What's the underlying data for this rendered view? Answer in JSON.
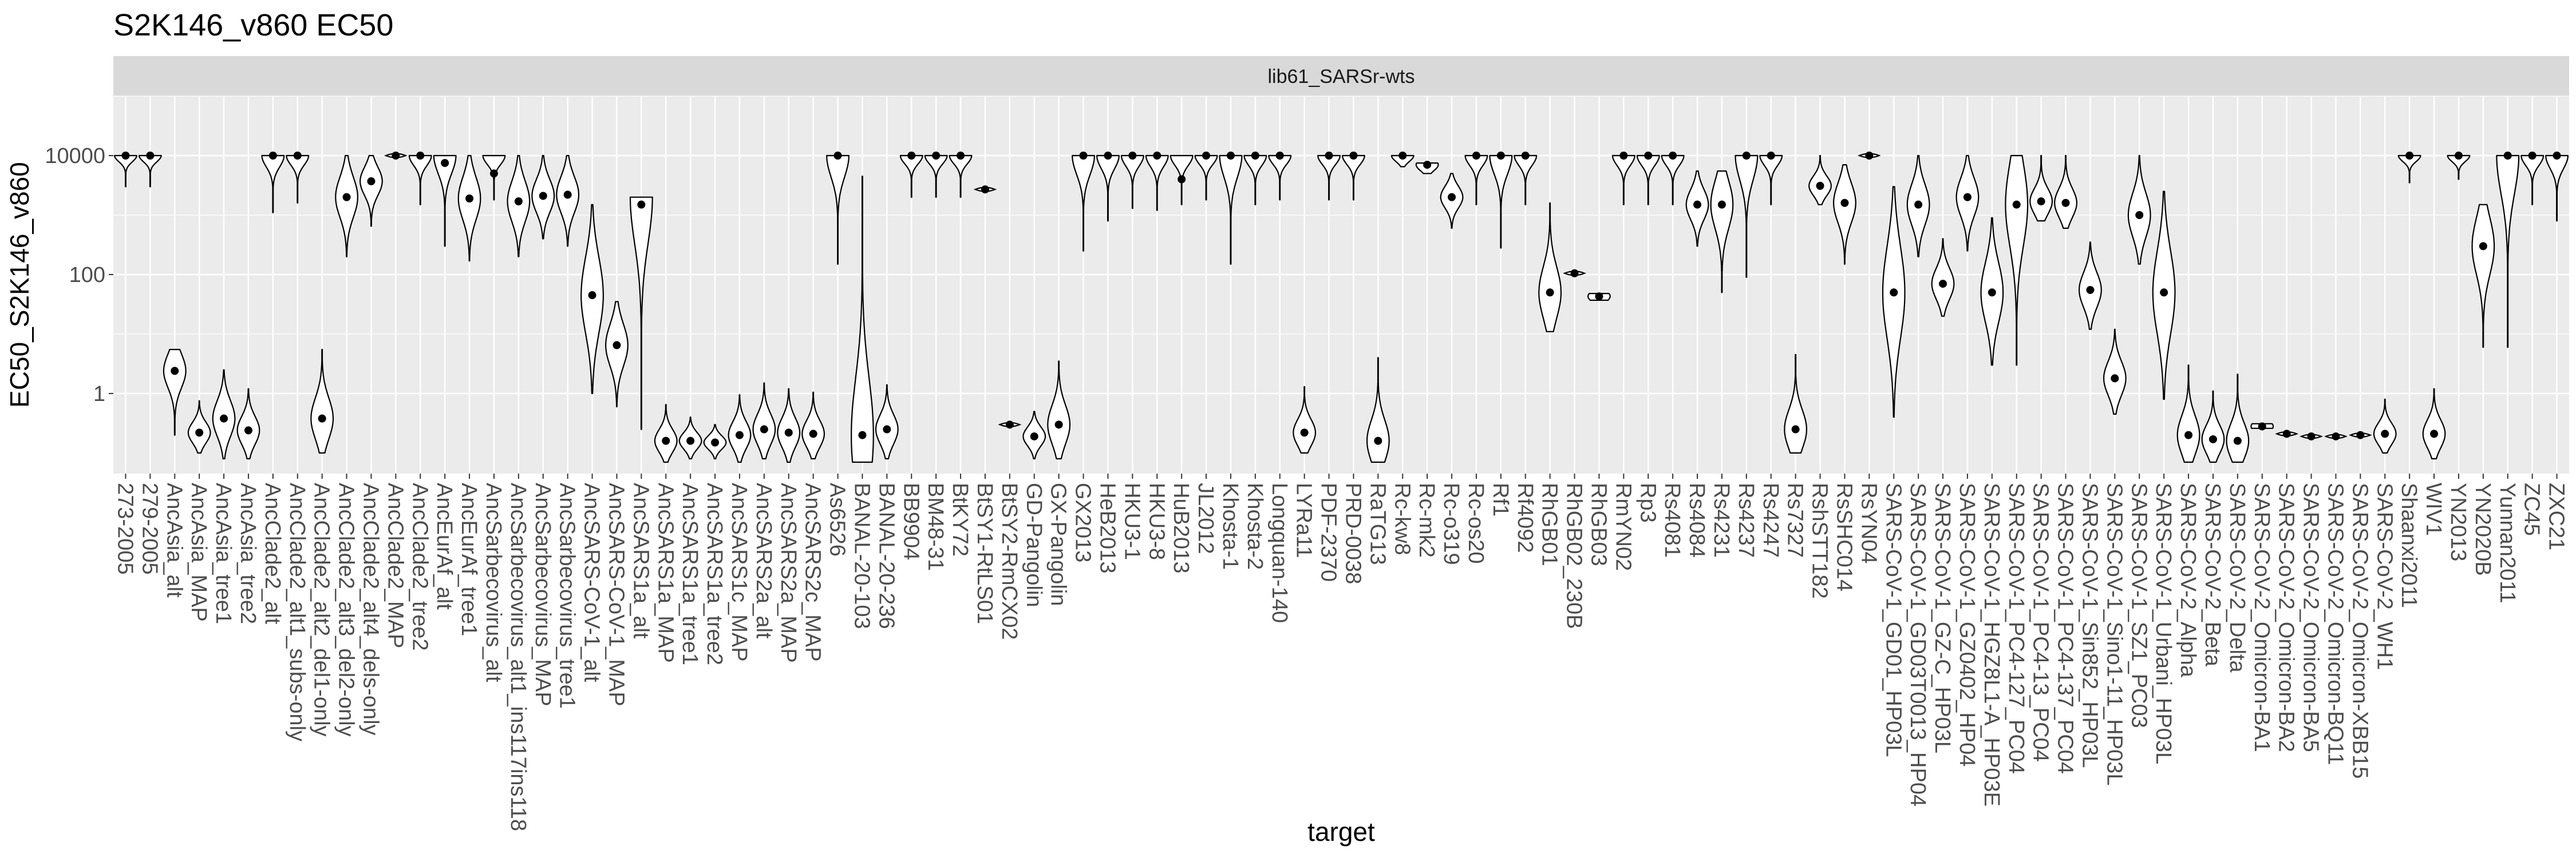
{
  "chart_data": {
    "type": "violin",
    "title": "S2K146_v860 EC50",
    "facet_label": "lib61_SARSr-wts",
    "xlabel": "target",
    "ylabel": "EC50_S2K146_v860",
    "y_scale": "log10",
    "ylim": [
      0.045,
      100000
    ],
    "y_ticks": [
      1,
      100,
      10000
    ],
    "y_tick_labels": [
      "1",
      "100",
      "10000"
    ],
    "grid": true,
    "colors": {
      "panel_background": "#ebebeb",
      "strip_background": "#d9d9d9",
      "grid_major": "#ffffff",
      "violin_fill": "#ffffff",
      "violin_outline": "#000000",
      "median_point": "#000000"
    },
    "categories": [
      "273-2005",
      "279-2005",
      "AncAsia_alt",
      "AncAsia_MAP",
      "AncAsia_tree1",
      "AncAsia_tree2",
      "AncClade2_alt",
      "AncClade2_alt1_subs-only",
      "AncClade2_alt2_del1-only",
      "AncClade2_alt3_del2-only",
      "AncClade2_alt4_dels-only",
      "AncClade2_MAP",
      "AncClade2_tree2",
      "AncEurAf_alt",
      "AncEurAf_tree1",
      "AncSarbecovirus_alt",
      "AncSarbecovirus_alt1_ins117ins118",
      "AncSarbecovirus_MAP",
      "AncSarbecovirus_tree1",
      "AncSARS-CoV-1_alt",
      "AncSARS-CoV-1_MAP",
      "AncSARS1a_alt",
      "AncSARS1a_MAP",
      "AncSARS1a_tree1",
      "AncSARS1a_tree2",
      "AncSARS1c_MAP",
      "AncSARS2a_alt",
      "AncSARS2a_MAP",
      "AncSARS2c_MAP",
      "As6526",
      "BANAL-20-103",
      "BANAL-20-236",
      "BB9904",
      "BM48-31",
      "BtKY72",
      "BtSY1-RtLS01",
      "BtSY2-RmCX02",
      "GD-Pangolin",
      "GX-Pangolin",
      "GX2013",
      "HeB2013",
      "HKU3-1",
      "HKU3-8",
      "HuB2013",
      "JL2012",
      "Khosta-1",
      "Khosta-2",
      "Longquan-140",
      "LYRa11",
      "PDF-2370",
      "PRD-0038",
      "RaTG13",
      "Rc-kw8",
      "Rc-mk2",
      "Rc-o319",
      "Rc-os20",
      "Rf1",
      "Rf4092",
      "RhGB01",
      "RhGB02_230B",
      "RhGB03",
      "RmYN02",
      "Rp3",
      "Rs4081",
      "Rs4084",
      "Rs4231",
      "Rs4237",
      "Rs4247",
      "Rs7327",
      "RshSTT182",
      "RsSHC014",
      "RsYN04",
      "SARS-CoV-1_GD01_HP03L",
      "SARS-CoV-1_GD03T0013_HP04",
      "SARS-CoV-1_GZ-C_HP03L",
      "SARS-CoV-1_GZ0402_HP04",
      "SARS-CoV-1_HGZ8L1-A_HP03E",
      "SARS-CoV-1_PC4-127_PC04",
      "SARS-CoV-1_PC4-13_PC04",
      "SARS-CoV-1_PC4-137_PC04",
      "SARS-CoV-1_Sin852_HP03L",
      "SARS-CoV-1_Sino1-11_HP03L",
      "SARS-CoV-1_SZ1_PC03",
      "SARS-CoV-1_Urbani_HP03L",
      "SARS-CoV-2_Alpha",
      "SARS-CoV-2_Beta",
      "SARS-CoV-2_Delta",
      "SARS-CoV-2_Omicron-BA1",
      "SARS-CoV-2_Omicron-BA2",
      "SARS-CoV-2_Omicron-BA5",
      "SARS-CoV-2_Omicron-BQ11",
      "SARS-CoV-2_Omicron-XBB15",
      "SARS-CoV-2_WH1",
      "Shaanxi2011",
      "WIV1",
      "YN2013",
      "YN2020B",
      "Yunnan2011",
      "ZC45",
      "ZXC21"
    ],
    "series": [
      {
        "values": [
          {
            "median": 10000,
            "min": 3000,
            "max": 10000,
            "peak": 10000
          },
          {
            "median": 10000,
            "min": 3000,
            "max": 10000,
            "peak": 10000
          },
          {
            "median": 2.4,
            "min": 0.2,
            "max": 5.5,
            "peak": 2.4
          },
          {
            "median": 0.22,
            "min": 0.1,
            "max": 0.75,
            "peak": 0.22
          },
          {
            "median": 0.38,
            "min": 0.08,
            "max": 2.5,
            "peak": 0.38
          },
          {
            "median": 0.24,
            "min": 0.08,
            "max": 1.2,
            "peak": 0.24
          },
          {
            "median": 10000,
            "min": 1100,
            "max": 10000,
            "peak": 10000
          },
          {
            "median": 10000,
            "min": 1600,
            "max": 10000,
            "peak": 10000
          },
          {
            "median": 0.38,
            "min": 0.1,
            "max": 5.5,
            "peak": 0.38
          },
          {
            "median": 2000,
            "min": 200,
            "max": 10000,
            "peak": 2000
          },
          {
            "median": 3700,
            "min": 650,
            "max": 10000,
            "peak": 3700
          },
          {
            "median": 10000,
            "min": 10000,
            "max": 10000,
            "peak": 10000
          },
          {
            "median": 10000,
            "min": 1500,
            "max": 10000,
            "peak": 10000
          },
          {
            "median": 7500,
            "min": 300,
            "max": 10000,
            "peak": 10000
          },
          {
            "median": 1900,
            "min": 170,
            "max": 10000,
            "peak": 1900
          },
          {
            "median": 5000,
            "min": 1800,
            "max": 10000,
            "peak": 10000
          },
          {
            "median": 1700,
            "min": 200,
            "max": 10000,
            "peak": 1700
          },
          {
            "median": 2100,
            "min": 400,
            "max": 10000,
            "peak": 2100
          },
          {
            "median": 2200,
            "min": 300,
            "max": 10000,
            "peak": 2200
          },
          {
            "median": 45,
            "min": 1,
            "max": 1500,
            "peak": 45
          },
          {
            "median": 6.5,
            "min": 0.6,
            "max": 35,
            "peak": 6.5
          },
          {
            "median": 1500,
            "min": 0.25,
            "max": 2000,
            "peak": 2000
          },
          {
            "median": 0.16,
            "min": 0.07,
            "max": 0.65,
            "peak": 0.16
          },
          {
            "median": 0.16,
            "min": 0.08,
            "max": 0.4,
            "peak": 0.16
          },
          {
            "median": 0.15,
            "min": 0.08,
            "max": 0.3,
            "peak": 0.15
          },
          {
            "median": 0.2,
            "min": 0.07,
            "max": 0.95,
            "peak": 0.2
          },
          {
            "median": 0.25,
            "min": 0.08,
            "max": 1.5,
            "peak": 0.25
          },
          {
            "median": 0.22,
            "min": 0.07,
            "max": 1.2,
            "peak": 0.22
          },
          {
            "median": 0.21,
            "min": 0.08,
            "max": 1.05,
            "peak": 0.21
          },
          {
            "median": 10000,
            "min": 150,
            "max": 10000,
            "peak": 10000
          },
          {
            "median": 0.2,
            "min": 0.07,
            "max": 4500,
            "peak": 0.2
          },
          {
            "median": 0.25,
            "min": 0.08,
            "max": 1.4,
            "peak": 0.25
          },
          {
            "median": 10000,
            "min": 2000,
            "max": 10000,
            "peak": 10000
          },
          {
            "median": 10000,
            "min": 2000,
            "max": 10000,
            "peak": 10000
          },
          {
            "median": 10000,
            "min": 2000,
            "max": 10000,
            "peak": 10000
          },
          {
            "median": 2700,
            "min": 2700,
            "max": 2700,
            "peak": 2700
          },
          {
            "median": 0.3,
            "min": 0.3,
            "max": 0.3,
            "peak": 0.3
          },
          {
            "median": 0.19,
            "min": 0.08,
            "max": 0.5,
            "peak": 0.19
          },
          {
            "median": 0.3,
            "min": 0.08,
            "max": 3.5,
            "peak": 0.3
          },
          {
            "median": 10000,
            "min": 250,
            "max": 10000,
            "peak": 10000
          },
          {
            "median": 10000,
            "min": 800,
            "max": 10000,
            "peak": 10000
          },
          {
            "median": 10000,
            "min": 1300,
            "max": 10000,
            "peak": 10000
          },
          {
            "median": 10000,
            "min": 1200,
            "max": 10000,
            "peak": 10000
          },
          {
            "median": 4000,
            "min": 1500,
            "max": 10000,
            "peak": 10000
          },
          {
            "median": 10000,
            "min": 1800,
            "max": 10000,
            "peak": 10000
          },
          {
            "median": 10000,
            "min": 150,
            "max": 10000,
            "peak": 10000
          },
          {
            "median": 10000,
            "min": 1500,
            "max": 10000,
            "peak": 10000
          },
          {
            "median": 10000,
            "min": 1800,
            "max": 10000,
            "peak": 10000
          },
          {
            "median": 0.22,
            "min": 0.1,
            "max": 1.3,
            "peak": 0.22
          },
          {
            "median": 10000,
            "min": 1800,
            "max": 10000,
            "peak": 10000
          },
          {
            "median": 10000,
            "min": 1800,
            "max": 10000,
            "peak": 10000
          },
          {
            "median": 0.16,
            "min": 0.07,
            "max": 4,
            "peak": 0.16
          },
          {
            "median": 10000,
            "min": 6500,
            "max": 10000,
            "peak": 10000
          },
          {
            "median": 7000,
            "min": 5000,
            "max": 7500,
            "peak": 7000
          },
          {
            "median": 2000,
            "min": 600,
            "max": 5000,
            "peak": 2000
          },
          {
            "median": 10000,
            "min": 1500,
            "max": 10000,
            "peak": 10000
          },
          {
            "median": 10000,
            "min": 280,
            "max": 10000,
            "peak": 10000
          },
          {
            "median": 10000,
            "min": 1500,
            "max": 10000,
            "peak": 10000
          },
          {
            "median": 50,
            "min": 11,
            "max": 1600,
            "peak": 50
          },
          {
            "median": 105,
            "min": 105,
            "max": 105,
            "peak": 105
          },
          {
            "median": 43,
            "min": 37,
            "max": 48,
            "peak": 43
          },
          {
            "median": 10000,
            "min": 1500,
            "max": 10000,
            "peak": 10000
          },
          {
            "median": 10000,
            "min": 1500,
            "max": 10000,
            "peak": 10000
          },
          {
            "median": 10000,
            "min": 1500,
            "max": 10000,
            "peak": 10000
          },
          {
            "median": 1500,
            "min": 300,
            "max": 5500,
            "peak": 1500
          },
          {
            "median": 1500,
            "min": 50,
            "max": 5500,
            "peak": 1500
          },
          {
            "median": 10000,
            "min": 90,
            "max": 10000,
            "peak": 10000
          },
          {
            "median": 10000,
            "min": 1500,
            "max": 10000,
            "peak": 10000
          },
          {
            "median": 0.25,
            "min": 0.1,
            "max": 4.5,
            "peak": 0.25
          },
          {
            "median": 3100,
            "min": 1500,
            "max": 10000,
            "peak": 3100
          },
          {
            "median": 1600,
            "min": 150,
            "max": 7000,
            "peak": 1600
          },
          {
            "median": 10000,
            "min": 10000,
            "max": 10000,
            "peak": 10000
          },
          {
            "median": 50,
            "min": 0.4,
            "max": 3000,
            "peak": 50
          },
          {
            "median": 1500,
            "min": 200,
            "max": 10000,
            "peak": 1500
          },
          {
            "median": 70,
            "min": 20,
            "max": 400,
            "peak": 70
          },
          {
            "median": 2000,
            "min": 250,
            "max": 10000,
            "peak": 2000
          },
          {
            "median": 50,
            "min": 3,
            "max": 900,
            "peak": 50
          },
          {
            "median": 1500,
            "min": 3,
            "max": 10000,
            "peak": 1500
          },
          {
            "median": 1700,
            "min": 800,
            "max": 10000,
            "peak": 1700
          },
          {
            "median": 1600,
            "min": 600,
            "max": 10000,
            "peak": 1600
          },
          {
            "median": 55,
            "min": 12,
            "max": 350,
            "peak": 55
          },
          {
            "median": 1.8,
            "min": 0.45,
            "max": 12,
            "peak": 1.8
          },
          {
            "median": 1000,
            "min": 150,
            "max": 10000,
            "peak": 1000
          },
          {
            "median": 50,
            "min": 0.8,
            "max": 2500,
            "peak": 50
          },
          {
            "median": 0.2,
            "min": 0.07,
            "max": 3,
            "peak": 0.2
          },
          {
            "median": 0.17,
            "min": 0.07,
            "max": 1.1,
            "peak": 0.17
          },
          {
            "median": 0.16,
            "min": 0.07,
            "max": 2.1,
            "peak": 0.16
          },
          {
            "median": 0.28,
            "min": 0.26,
            "max": 0.31,
            "peak": 0.28
          },
          {
            "median": 0.21,
            "min": 0.21,
            "max": 0.21,
            "peak": 0.21
          },
          {
            "median": 0.19,
            "min": 0.19,
            "max": 0.19,
            "peak": 0.19
          },
          {
            "median": 0.19,
            "min": 0.19,
            "max": 0.19,
            "peak": 0.19
          },
          {
            "median": 0.2,
            "min": 0.2,
            "max": 0.2,
            "peak": 0.2
          },
          {
            "median": 0.21,
            "min": 0.1,
            "max": 0.8,
            "peak": 0.21
          },
          {
            "median": 10000,
            "min": 3500,
            "max": 10000,
            "peak": 10000
          },
          {
            "median": 0.21,
            "min": 0.08,
            "max": 1.2,
            "peak": 0.21
          },
          {
            "median": 10000,
            "min": 4000,
            "max": 10000,
            "peak": 10000
          },
          {
            "median": 300,
            "min": 6,
            "max": 1500,
            "peak": 300
          },
          {
            "median": 10000,
            "min": 6,
            "max": 10000,
            "peak": 10000
          },
          {
            "median": 10000,
            "min": 1500,
            "max": 10000,
            "peak": 10000
          },
          {
            "median": 10000,
            "min": 800,
            "max": 10000,
            "peak": 10000
          }
        ]
      }
    ]
  }
}
